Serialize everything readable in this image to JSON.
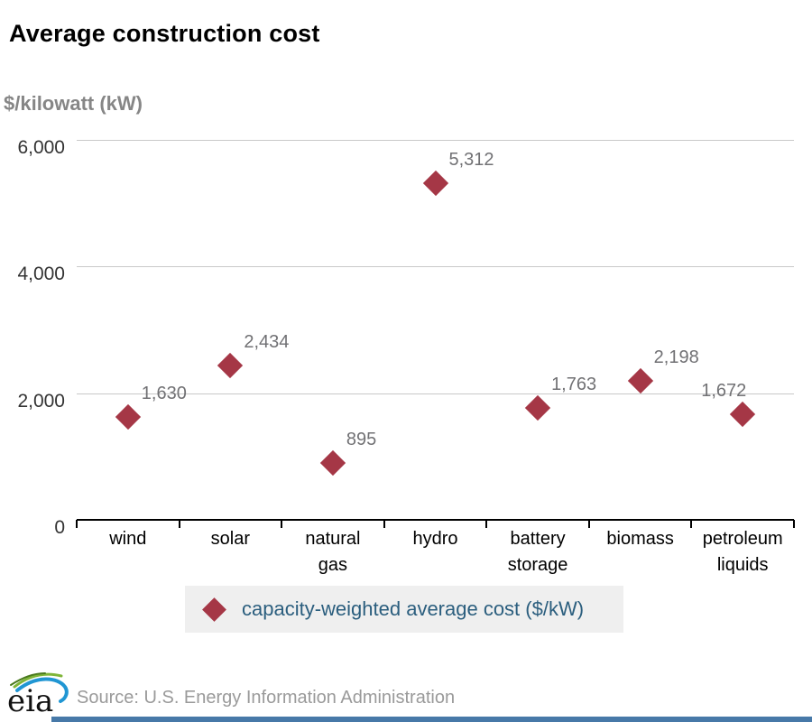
{
  "title": "Average construction cost",
  "y_axis_unit": "$/kilowatt (kW)",
  "legend": {
    "label": "capacity-weighted average cost ($/kW)"
  },
  "source": "Source: U.S. Energy Information Administration",
  "logo_text": "eia",
  "colors": {
    "marker": "#a53746",
    "grid": "#c9c9c9",
    "axis": "#000000",
    "data_label": "#717174",
    "unit_label": "#868686",
    "legend_bg": "#efefef",
    "legend_text": "#2b5e7e",
    "source_text": "#9a9a9a",
    "footer_bar": "#4779a8",
    "logo_green": "#7fb539",
    "logo_blue": "#2096d3"
  },
  "chart_data": {
    "type": "scatter",
    "marker": "diamond",
    "title": "Average construction cost",
    "ylabel": "$/kilowatt (kW)",
    "categories": [
      "wind",
      "solar",
      "natural gas",
      "hydro",
      "battery storage",
      "biomass",
      "petroleum liquids"
    ],
    "values": [
      1630,
      2434,
      895,
      5312,
      1763,
      2198,
      1672
    ],
    "value_labels": [
      "1,630",
      "2,434",
      "895",
      "5,312",
      "1,763",
      "2,198",
      "1,672"
    ],
    "series": [
      {
        "name": "capacity-weighted average cost ($/kW)",
        "values": [
          1630,
          2434,
          895,
          5312,
          1763,
          2198,
          1672
        ]
      }
    ],
    "ylim": [
      0,
      6000
    ],
    "yticks": [
      0,
      2000,
      4000,
      6000
    ],
    "ytick_labels": [
      "0",
      "2,000",
      "4,000",
      "6,000"
    ],
    "grid": "horizontal",
    "legend_position": "bottom"
  }
}
